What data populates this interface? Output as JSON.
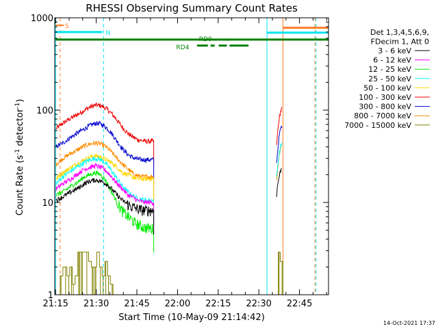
{
  "chart_data": {
    "type": "line",
    "title": "RHESSI Observing Summary Count Rates",
    "xlabel": "Start Time (10-May-09 21:14:42)",
    "ylabel_main": "Count Rate (s",
    "ylabel_sup1": "-1",
    "ylabel_mid": " detector",
    "ylabel_sup2": "-1",
    "ylabel_end": ")",
    "y_scale": "log",
    "ylim": [
      1,
      1000
    ],
    "xlim_minutes": [
      0,
      101
    ],
    "x_tick_labels": [
      {
        "t": 0.3,
        "label": "21:15"
      },
      {
        "t": 15.3,
        "label": "21:30"
      },
      {
        "t": 30.3,
        "label": "21:45"
      },
      {
        "t": 45.3,
        "label": "22:00"
      },
      {
        "t": 60.3,
        "label": "22:15"
      },
      {
        "t": 75.3,
        "label": "22:30"
      },
      {
        "t": 90.3,
        "label": "22:45"
      }
    ],
    "y_tick_labels": [
      {
        "v": 1,
        "label": "1"
      },
      {
        "v": 10,
        "label": "10"
      },
      {
        "v": 100,
        "label": "100"
      },
      {
        "v": 1000,
        "label": "1000"
      }
    ],
    "legend_header": [
      "Det 1,3,4,5,6,9,",
      "FDecim 1, Att 0"
    ],
    "legend_position": "right",
    "legend": [
      {
        "label": "3 - 6 keV",
        "color": "#000000"
      },
      {
        "label": "6 - 12 keV",
        "color": "#ff00ff"
      },
      {
        "label": "12 - 25 keV",
        "color": "#00ee00"
      },
      {
        "label": "25 - 50 keV",
        "color": "#00ffff"
      },
      {
        "label": "50 - 100 keV",
        "color": "#ffd700"
      },
      {
        "label": "100 - 300 keV",
        "color": "#ee0000"
      },
      {
        "label": "300 - 800 keV",
        "color": "#0000cc"
      },
      {
        "label": "800 - 7000 keV",
        "color": "#ff8c00"
      },
      {
        "label": "7000 - 15000 keV",
        "color": "#808000"
      }
    ],
    "series": [
      {
        "color": "#ee0000",
        "segments": [
          {
            "x": [
              0.5,
              3,
              6,
              9,
              11,
              13,
              15,
              17,
              19,
              21,
              23,
              25,
              27,
              28.5,
              29.5,
              30.5,
              32,
              33.5,
              36.5
            ],
            "y": [
              63,
              72,
              82,
              92,
              100,
              108,
              113,
              112,
              104,
              92,
              78,
              65,
              56,
              52,
              50,
              48,
              47,
              46,
              46
            ]
          },
          {
            "x": [
              81.8,
              82.3,
              82.8,
              83.3,
              83.8
            ],
            "y": [
              40,
              60,
              80,
              95,
              105
            ]
          }
        ]
      },
      {
        "color": "#0000cc",
        "segments": [
          {
            "x": [
              0.5,
              3,
              6,
              9,
              11,
              13,
              15,
              17,
              19,
              21,
              23,
              25,
              27,
              28.5,
              29.5,
              30.5,
              32,
              33.5,
              36.5
            ],
            "y": [
              40,
              44,
              51,
              58,
              63,
              68,
              72,
              71,
              65,
              56,
              46,
              38,
              33,
              31,
              30,
              29.5,
              29,
              29,
              29
            ]
          },
          {
            "x": [
              81.8,
              82.3,
              82.8,
              83.3,
              83.8
            ],
            "y": [
              26,
              38,
              52,
              62,
              68
            ]
          }
        ]
      },
      {
        "color": "#ff8c00",
        "segments": [
          {
            "x": [
              0.5,
              3,
              6,
              9,
              11,
              13,
              15,
              17,
              19,
              21,
              23,
              25,
              27,
              28.5,
              29.5,
              30.5,
              32,
              33.5,
              36.5
            ],
            "y": [
              26,
              30,
              34,
              38,
              41,
              43,
              44,
              43,
              40,
              35,
              30,
              26,
              23,
              21,
              20,
              19.5,
              19,
              19,
              19
            ]
          },
          {
            "x": [
              81.8,
              82.3,
              82.8,
              83.3,
              83.8
            ],
            "y": [
              17,
              24,
              32,
              39,
              43
            ]
          }
        ]
      },
      {
        "color": "#ffd700",
        "segments": [
          {
            "x": [
              0.5,
              3,
              6,
              9,
              11,
              13,
              15,
              17,
              19,
              21,
              23,
              25,
              27,
              28.5,
              29.5,
              30.5,
              32,
              33.5,
              36.5
            ],
            "y": [
              18,
              21,
              24,
              27,
              29,
              31,
              32,
              31,
              29,
              27,
              24,
              21,
              20,
              19,
              18.5,
              18,
              18,
              18,
              18
            ]
          }
        ]
      },
      {
        "color": "#00ffff",
        "segments": [
          {
            "x": [
              0.5,
              3,
              6,
              9,
              11,
              13,
              15,
              17,
              19,
              21,
              23,
              25,
              27,
              28.5,
              29.5,
              30.5,
              32,
              33.5,
              36.5
            ],
            "y": [
              16,
              19,
              22,
              25,
              27,
              29,
              30,
              29,
              26,
              22,
              18,
              15,
              13,
              12,
              11.5,
              11,
              10.8,
              10.6,
              10.5
            ]
          },
          {
            "x": [
              81.8,
              82.3,
              82.8,
              83.3,
              83.8
            ],
            "y": [
              18,
              26,
              34,
              40,
              44
            ]
          }
        ]
      },
      {
        "color": "#ff00ff",
        "segments": [
          {
            "x": [
              0.5,
              3,
              6,
              9,
              11,
              13,
              15,
              17,
              19,
              21,
              23,
              25,
              27,
              28.5,
              29.5,
              30.5,
              32,
              33.5,
              36.5
            ],
            "y": [
              14,
              16,
              18,
              21,
              23,
              24,
              25,
              24,
              22,
              19,
              16,
              14,
              12,
              11.5,
              11,
              10.5,
              10.2,
              10,
              10
            ]
          }
        ]
      },
      {
        "color": "#00ee00",
        "segments": [
          {
            "x": [
              0.5,
              3,
              6,
              9,
              11,
              13,
              15,
              17,
              19,
              21,
              23,
              25,
              27,
              28.5,
              29.5,
              30.5,
              32,
              33.5,
              36.5
            ],
            "y": [
              12,
              13,
              15,
              17,
              19,
              20,
              21,
              20,
              17,
              13,
              10,
              8,
              7,
              6.5,
              6,
              5.8,
              5.5,
              5.3,
              5.2
            ]
          }
        ]
      },
      {
        "color": "#000000",
        "segments": [
          {
            "x": [
              0.5,
              3,
              6,
              9,
              11,
              13,
              15,
              17,
              19,
              21,
              23,
              25,
              27,
              28.5,
              29.5,
              30.5,
              32,
              33.5,
              36.5
            ],
            "y": [
              10.5,
              11.5,
              13,
              14.5,
              16,
              17,
              17.5,
              17,
              16,
              14,
              12,
              10.5,
              9.5,
              9,
              8.8,
              8.5,
              8.3,
              8.2,
              8.2
            ]
          },
          {
            "x": [
              81.8,
              82.3,
              82.8,
              83.3,
              83.8
            ],
            "y": [
              12,
              16,
              19,
              22,
              24
            ]
          }
        ]
      },
      {
        "color": "#808000",
        "style": "step",
        "segments": [
          {
            "x": [
              1,
              2,
              3,
              4.5,
              5.5,
              6.5,
              7.5,
              8.5,
              9.5,
              10.5,
              11.5,
              12.5,
              13.5,
              14.5,
              15.5,
              16.5,
              17.5,
              18.5,
              19.5,
              20.5,
              21.5
            ],
            "y": [
              1,
              1.6,
              2,
              1.6,
              2,
              1.3,
              1.6,
              2.9,
              2.9,
              2.9,
              2.9,
              2.3,
              2,
              2,
              2.9,
              2,
              1.6,
              2.3,
              1.6,
              1.3,
              1
            ]
          },
          {
            "x": [
              81.8,
              82.5,
              83.2,
              84.2
            ],
            "y": [
              1,
              2.9,
              2.3,
              1
            ]
          }
        ]
      }
    ],
    "vertical_lines": [
      {
        "t": 0.3,
        "color": "#00e5ee",
        "style": "solid"
      },
      {
        "t": 2.0,
        "color": "#ff7f27",
        "style": "dashed"
      },
      {
        "t": 18.0,
        "color": "#00e5ee",
        "style": "dashed"
      },
      {
        "t": 78.3,
        "color": "#00e5ee",
        "style": "solid"
      },
      {
        "t": 84.2,
        "color": "#ff7f27",
        "style": "solid"
      },
      {
        "t": 96.0,
        "color": "#ff7f27",
        "style": "dashed"
      },
      {
        "t": 96.4,
        "color": "#00e5ee",
        "style": "dashed"
      }
    ],
    "flag_bars": [
      {
        "label": "S",
        "color": "#ff7f27",
        "t0": 0.3,
        "t1": 3.4,
        "v": 830,
        "width": 2,
        "label_t": 3.8
      },
      {
        "label": "N",
        "color": "#00e5ee",
        "t0": 0.3,
        "t1": 17.5,
        "v": 700,
        "width": 3,
        "label_t": 18.8
      },
      {
        "label": "",
        "color": "#ff7f27",
        "t0": 84.2,
        "t1": 101,
        "v": 780,
        "width": 3
      },
      {
        "label": "",
        "color": "#00e5ee",
        "t0": 78.3,
        "t1": 101,
        "v": 690,
        "width": 3
      },
      {
        "label": "",
        "color": "#008000",
        "t0": 0.3,
        "t1": 101,
        "v": 580,
        "width": 3
      },
      {
        "label": "RD0",
        "color": "#008000",
        "t0": 58.5,
        "t1": 59.8,
        "v": 580,
        "width": 3,
        "label_t": 53.2,
        "label_v": 600
      },
      {
        "label": "",
        "color": "#008000",
        "t0": 62,
        "t1": 65,
        "v": 580,
        "width": 3
      },
      {
        "label": "RD4",
        "color": "#008000",
        "t0": 52.5,
        "t1": 56.5,
        "v": 500,
        "width": 3,
        "label_t": 44.8,
        "label_v": 490
      },
      {
        "label": "",
        "color": "#008000",
        "t0": 57.5,
        "t1": 59.0,
        "v": 500,
        "width": 3
      },
      {
        "label": "",
        "color": "#008000",
        "t0": 60.5,
        "t1": 63.5,
        "v": 500,
        "width": 3
      },
      {
        "label": "",
        "color": "#008000",
        "t0": 64.5,
        "t1": 71.5,
        "v": 500,
        "width": 3
      }
    ],
    "timestamp": "14-Oct-2021 17:37"
  }
}
